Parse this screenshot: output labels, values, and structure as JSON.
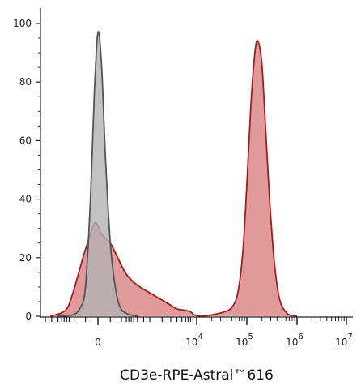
{
  "chart_data": {
    "type": "area",
    "title": "",
    "xlabel": "CD3e-RPE-Astral™616",
    "ylabel": "",
    "ylim": [
      0,
      100
    ],
    "y_ticks": [
      0,
      20,
      40,
      60,
      80,
      100
    ],
    "x_scale": "biexponential",
    "x_ticks": [
      {
        "base": "0",
        "exp": ""
      },
      {
        "base": "10",
        "exp": "4"
      },
      {
        "base": "10",
        "exp": "5"
      },
      {
        "base": "10",
        "exp": "6"
      },
      {
        "base": "10",
        "exp": "7"
      }
    ],
    "grid": false,
    "legend": "none",
    "series": [
      {
        "color": "#555555",
        "fill": "#b3b3b3",
        "points": [
          [
            -1.6,
            0
          ],
          [
            -1.0,
            0.5
          ],
          [
            -0.7,
            3
          ],
          [
            -0.5,
            10
          ],
          [
            -0.3,
            40
          ],
          [
            -0.15,
            75
          ],
          [
            0,
            97
          ],
          [
            0.15,
            85
          ],
          [
            0.3,
            55
          ],
          [
            0.5,
            25
          ],
          [
            0.7,
            10
          ],
          [
            0.9,
            3
          ],
          [
            1.2,
            0.8
          ],
          [
            1.6,
            0
          ]
        ]
      },
      {
        "color": "#a81c1c",
        "fill": "#e09a9a",
        "points": [
          [
            -1.9,
            0
          ],
          [
            -1.3,
            2
          ],
          [
            -1.0,
            8
          ],
          [
            -0.6,
            20
          ],
          [
            -0.3,
            28
          ],
          [
            -0.1,
            32
          ],
          [
            0.15,
            28
          ],
          [
            0.5,
            25
          ],
          [
            0.8,
            20
          ],
          [
            1.1,
            15
          ],
          [
            1.4,
            12
          ],
          [
            1.7,
            10
          ],
          [
            2.1,
            8
          ],
          [
            2.5,
            6
          ],
          [
            2.9,
            4
          ],
          [
            3.2,
            2.5
          ],
          [
            3.55,
            2
          ],
          [
            3.75,
            1.5
          ],
          [
            3.9,
            0.5
          ],
          [
            4.08,
            0
          ],
          [
            4.25,
            0.3
          ],
          [
            4.4,
            0.8
          ],
          [
            4.55,
            1.5
          ],
          [
            4.7,
            3
          ],
          [
            4.82,
            8
          ],
          [
            4.92,
            22
          ],
          [
            5.0,
            45
          ],
          [
            5.08,
            72
          ],
          [
            5.16,
            90
          ],
          [
            5.22,
            94
          ],
          [
            5.3,
            86
          ],
          [
            5.38,
            62
          ],
          [
            5.46,
            38
          ],
          [
            5.55,
            18
          ],
          [
            5.65,
            6
          ],
          [
            5.8,
            1
          ],
          [
            6.0,
            0
          ]
        ]
      }
    ]
  }
}
